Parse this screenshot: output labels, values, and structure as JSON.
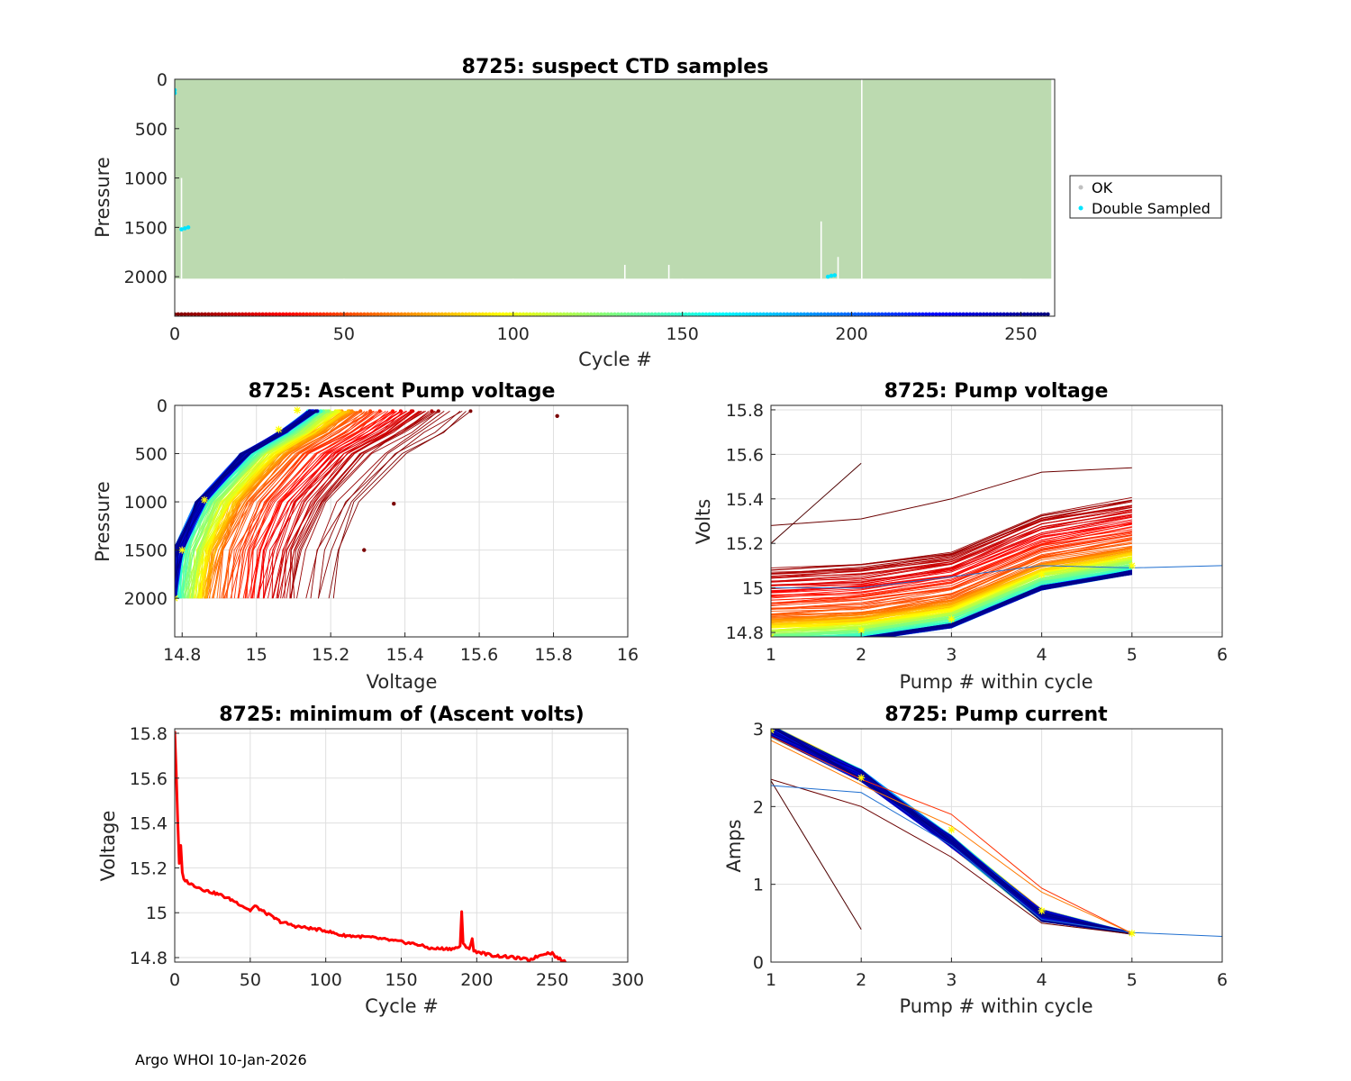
{
  "footer": "Argo WHOI 10-Jan-2026",
  "chart_data": [
    {
      "id": "suspect",
      "type": "scatter",
      "title": "8725: suspect CTD samples",
      "xlabel": "Cycle #",
      "ylabel": "Pressure",
      "xlim": [
        0,
        260
      ],
      "ylim": [
        0,
        2400
      ],
      "y_reversed": true,
      "xticks": [
        0,
        50,
        100,
        150,
        200,
        250
      ],
      "yticks": [
        0,
        500,
        1000,
        1500,
        2000
      ],
      "legend": [
        {
          "label": "OK",
          "color": "#c0c0c0"
        },
        {
          "label": "Double Sampled",
          "color": "#00e5ff"
        }
      ],
      "ok_fill_color": "#bcdab0",
      "ok_pressure_range": [
        0,
        2020
      ],
      "ok_cycle_range": [
        0,
        259
      ],
      "cycle_axis_marker_count": 259,
      "gaps": [
        {
          "cycle": 2,
          "pmin": 1000,
          "pmax": 2020
        },
        {
          "cycle": 50,
          "pmin": 2020,
          "pmax": 2380
        },
        {
          "cycle": 100,
          "pmin": 2020,
          "pmax": 2380
        },
        {
          "cycle": 133,
          "pmin": 1880,
          "pmax": 2020
        },
        {
          "cycle": 146,
          "pmin": 1880,
          "pmax": 2020
        },
        {
          "cycle": 150,
          "pmin": 2020,
          "pmax": 2380
        },
        {
          "cycle": 191,
          "pmin": 1440,
          "pmax": 2020
        },
        {
          "cycle": 196,
          "pmin": 1800,
          "pmax": 2020
        },
        {
          "cycle": 203,
          "pmin": 0,
          "pmax": 2020
        },
        {
          "cycle": 250,
          "pmin": 2020,
          "pmax": 2380
        }
      ],
      "double_sampled": [
        {
          "x": 0,
          "y": 110
        },
        {
          "x": 0,
          "y": 140
        },
        {
          "x": 2,
          "y": 1520
        },
        {
          "x": 3,
          "y": 1510
        },
        {
          "x": 4,
          "y": 1500
        },
        {
          "x": 193,
          "y": 2000
        },
        {
          "x": 194,
          "y": 1990
        },
        {
          "x": 195,
          "y": 1985
        }
      ]
    },
    {
      "id": "ascent_voltage",
      "type": "line",
      "title": "8725: Ascent Pump voltage",
      "xlabel": "Voltage",
      "ylabel": "Pressure",
      "xlim": [
        14.78,
        16
      ],
      "ylim": [
        0,
        2400
      ],
      "y_reversed": true,
      "xticks": [
        14.8,
        15,
        15.2,
        15.4,
        15.6,
        15.8,
        16
      ],
      "xticklabels": [
        "14.8",
        "15",
        "15.2",
        "15.4",
        "15.6",
        "15.8",
        "16"
      ],
      "yticks": [
        0,
        500,
        1000,
        1500,
        2000
      ],
      "series_count": 259,
      "pressure_levels": [
        2000,
        1500,
        1000,
        500,
        280,
        60
      ],
      "profile_rule": "voltage by cycle follows min ascent voltage curve; offsets per level added",
      "level_offsets": [
        0.0,
        0.02,
        0.08,
        0.2,
        0.3,
        0.38
      ],
      "outlier_points": [
        {
          "x": 15.81,
          "y": 110
        },
        {
          "x": 15.29,
          "y": 1500
        },
        {
          "x": 15.37,
          "y": 1020
        }
      ],
      "yellow_markers": [
        {
          "x": 14.78,
          "y": 2000
        },
        {
          "x": 14.8,
          "y": 1500
        },
        {
          "x": 14.86,
          "y": 980
        },
        {
          "x": 15.06,
          "y": 250
        },
        {
          "x": 15.11,
          "y": 50
        }
      ]
    },
    {
      "id": "pump_voltage",
      "type": "line",
      "title": "8725: Pump voltage",
      "xlabel": "Pump # within cycle",
      "ylabel": "Volts",
      "xlim": [
        1,
        6
      ],
      "ylim": [
        14.78,
        15.82
      ],
      "xticks": [
        1,
        2,
        3,
        4,
        5,
        6
      ],
      "yticks": [
        14.8,
        15,
        15.2,
        15.4,
        15.6,
        15.8
      ],
      "yticklabels": [
        "14.8",
        "15",
        "15.2",
        "15.4",
        "15.6",
        "15.8"
      ],
      "series_count": 259,
      "step_offsets": [
        0.0,
        0.02,
        0.08,
        0.25,
        0.32
      ],
      "special_lines": [
        {
          "x": [
            1,
            2
          ],
          "y": [
            15.2,
            15.56
          ],
          "color": "#4d0000"
        },
        {
          "x": [
            1,
            2,
            3,
            4,
            5
          ],
          "y": [
            15.28,
            15.31,
            15.4,
            15.52,
            15.54
          ],
          "color": "#6b0000"
        },
        {
          "x": [
            1,
            2,
            3,
            4,
            5,
            6
          ],
          "y": [
            15.0,
            15.0,
            15.05,
            15.1,
            15.09,
            15.1
          ],
          "color": "#1f6fd0"
        }
      ],
      "yellow_markers": [
        {
          "x": 1,
          "y": 14.78
        },
        {
          "x": 2,
          "y": 14.81
        },
        {
          "x": 3,
          "y": 14.86
        },
        {
          "x": 4,
          "y": 15.06
        },
        {
          "x": 5,
          "y": 15.1
        }
      ]
    },
    {
      "id": "min_ascent",
      "type": "line",
      "title": "8725: minimum of (Ascent volts)",
      "xlabel": "Cycle #",
      "ylabel": "Voltage",
      "xlim": [
        0,
        300
      ],
      "ylim": [
        14.78,
        15.82
      ],
      "xticks": [
        0,
        50,
        100,
        150,
        200,
        250,
        300
      ],
      "yticks": [
        14.8,
        15,
        15.2,
        15.4,
        15.6,
        15.8
      ],
      "yticklabels": [
        "14.8",
        "15",
        "15.2",
        "15.4",
        "15.6",
        "15.8"
      ],
      "line_color": "#ff0000",
      "anchors": [
        {
          "x": 0,
          "y": 15.81
        },
        {
          "x": 1,
          "y": 15.62
        },
        {
          "x": 2,
          "y": 15.4
        },
        {
          "x": 3,
          "y": 15.22
        },
        {
          "x": 4,
          "y": 15.3
        },
        {
          "x": 5,
          "y": 15.18
        },
        {
          "x": 6,
          "y": 15.15
        },
        {
          "x": 10,
          "y": 15.13
        },
        {
          "x": 20,
          "y": 15.1
        },
        {
          "x": 30,
          "y": 15.08
        },
        {
          "x": 40,
          "y": 15.05
        },
        {
          "x": 50,
          "y": 15.01
        },
        {
          "x": 53,
          "y": 15.03
        },
        {
          "x": 60,
          "y": 15.0
        },
        {
          "x": 70,
          "y": 14.96
        },
        {
          "x": 80,
          "y": 14.94
        },
        {
          "x": 100,
          "y": 14.92
        },
        {
          "x": 110,
          "y": 14.9
        },
        {
          "x": 130,
          "y": 14.89
        },
        {
          "x": 150,
          "y": 14.87
        },
        {
          "x": 160,
          "y": 14.86
        },
        {
          "x": 170,
          "y": 14.84
        },
        {
          "x": 185,
          "y": 14.84
        },
        {
          "x": 189,
          "y": 14.85
        },
        {
          "x": 190,
          "y": 15.0
        },
        {
          "x": 191,
          "y": 14.86
        },
        {
          "x": 195,
          "y": 14.84
        },
        {
          "x": 197,
          "y": 14.88
        },
        {
          "x": 198,
          "y": 14.83
        },
        {
          "x": 210,
          "y": 14.81
        },
        {
          "x": 225,
          "y": 14.8
        },
        {
          "x": 235,
          "y": 14.79
        },
        {
          "x": 245,
          "y": 14.82
        },
        {
          "x": 250,
          "y": 14.82
        },
        {
          "x": 253,
          "y": 14.8
        },
        {
          "x": 259,
          "y": 14.78
        }
      ]
    },
    {
      "id": "pump_current",
      "type": "line",
      "title": "8725: Pump current",
      "xlabel": "Pump # within cycle",
      "ylabel": "Amps",
      "xlim": [
        1,
        6
      ],
      "ylim": [
        0,
        3
      ],
      "xticks": [
        1,
        2,
        3,
        4,
        5,
        6
      ],
      "yticks": [
        0,
        1,
        2,
        3
      ],
      "series_count": 259,
      "mean_profile": [
        2.97,
        2.4,
        1.55,
        0.6,
        0.37
      ],
      "special_lines": [
        {
          "x": [
            1,
            2
          ],
          "y": [
            2.33,
            0.42
          ],
          "color": "#4d0000"
        },
        {
          "x": [
            1,
            2,
            3,
            4,
            5
          ],
          "y": [
            2.35,
            2.0,
            1.35,
            0.5,
            0.36
          ],
          "color": "#6b0000"
        },
        {
          "x": [
            1,
            2,
            3,
            4,
            5,
            6
          ],
          "y": [
            2.27,
            2.18,
            1.5,
            0.55,
            0.38,
            0.33
          ],
          "color": "#1f6fd0"
        },
        {
          "x": [
            1,
            2,
            3,
            4,
            5
          ],
          "y": [
            2.9,
            2.35,
            1.9,
            0.95,
            0.37
          ],
          "color": "#ff3000"
        },
        {
          "x": [
            1,
            2,
            3,
            4,
            5
          ],
          "y": [
            2.85,
            2.28,
            1.75,
            0.9,
            0.37
          ],
          "color": "#ff7a00"
        }
      ],
      "yellow_markers": [
        {
          "x": 1,
          "y": 2.98
        },
        {
          "x": 2,
          "y": 2.37
        },
        {
          "x": 3,
          "y": 1.7
        },
        {
          "x": 4,
          "y": 0.66
        },
        {
          "x": 5,
          "y": 0.37
        }
      ]
    }
  ]
}
